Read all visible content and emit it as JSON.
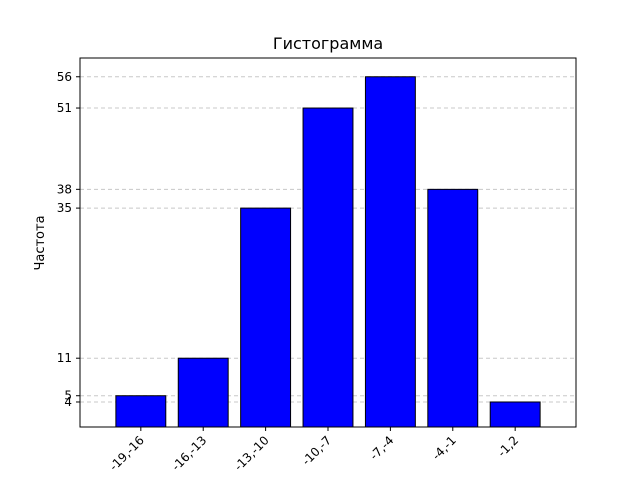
{
  "chart_data": {
    "type": "bar",
    "title": "Гистограмма",
    "xlabel": "",
    "ylabel": "Частота",
    "categories": [
      "-19,-16",
      "-16,-13",
      "-13,-10",
      "-10,-7",
      "-7,-4",
      "-4,-1",
      "-1,2"
    ],
    "values": [
      5,
      11,
      35,
      51,
      56,
      38,
      4
    ],
    "yticks": [
      4,
      5,
      11,
      35,
      38,
      51,
      56
    ],
    "ylim": [
      0,
      59
    ],
    "grid": "y-dashed",
    "bar_color": "#0000ff",
    "edge_color": "#000000",
    "grid_color": "#c8c8c8",
    "xtick_rotation": 45
  }
}
